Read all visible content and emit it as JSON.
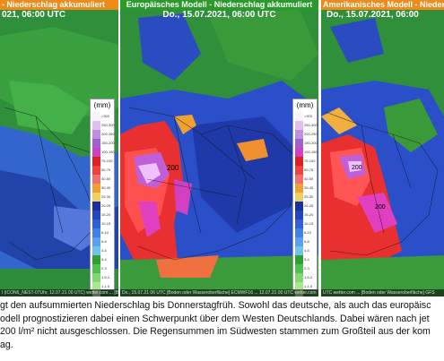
{
  "panels": {
    "left": {
      "title": " - Niederschlag akkumuliert",
      "date": "021, 06:00 UTC",
      "footer": "l (ICON6_NEST-07Uhr, 12.07.21 00 UTC)  wetter.com ... [Boden oder Wasseroberfläche]"
    },
    "middle": {
      "title": "Europäisches Modell - Niederschlag akkumuliert",
      "date": "Do., 15.07.2021, 06:00 UTC",
      "footer": "Do., 15.07.21 06 UTC  [Boden oder Wasseroberfläche] ECMWF16 ... 12.07.21 00 UTC  wetter.com"
    },
    "right": {
      "title": "Amerikanisches Modell - Nieder",
      "date": "Do., 15.07.2021, 06:00",
      "footer": "UTC  wetter.com ... [Boden oder Wasseroberfläche] GFS"
    }
  },
  "legend": {
    "unit": "(mm)",
    "labels": [
      ">300",
      "250-300",
      "200-250",
      "150-200",
      "100-150",
      "75-100",
      "50-75",
      "40-50",
      "30-40",
      "25-30",
      "20-25",
      "15-20",
      "10-15",
      "8-10",
      "6-8",
      "4-6",
      "3-4",
      "2-3",
      "1.5-2",
      "1-1.5",
      "0.5-1",
      "0.1-0.5"
    ],
    "colors": [
      "#f5f5f5",
      "#e0c0f0",
      "#c090e0",
      "#a060d0",
      "#d040c0",
      "#e02020",
      "#f04040",
      "#f07070",
      "#f0a030",
      "#f0d060",
      "#1a2fa0",
      "#2545c0",
      "#3060d8",
      "#4080e8",
      "#5aa0f0",
      "#70c0f0",
      "#30a030",
      "#50c050",
      "#80d870",
      "#a8e890",
      "#c8f0b0",
      "#e8f8d8"
    ]
  },
  "map_labels": {
    "mid_peak": "200",
    "right_peak": "200",
    "right_low": "200"
  },
  "caption": {
    "line1": "gt den aufsummierten Niederschlag bis Donnerstagfrüh. Sowohl das deutsche, als auch das europäisc",
    "line2": "odell prognostizieren dabei einen Schwerpunkt über dem Westen Deutschlands. Dabei wären nach jet",
    "line3": "200 l/m² nicht ausgeschlossen. Die Regensummen im Südwesten stammen zum Großteil aus der kom",
    "line4": "ag."
  },
  "colors": {
    "header_left_bg": "#f08a1a",
    "header_mid_bg": "#2a9a2a",
    "header_right_bg": "#f08a1a",
    "header_text_dark": "#ffffff"
  }
}
